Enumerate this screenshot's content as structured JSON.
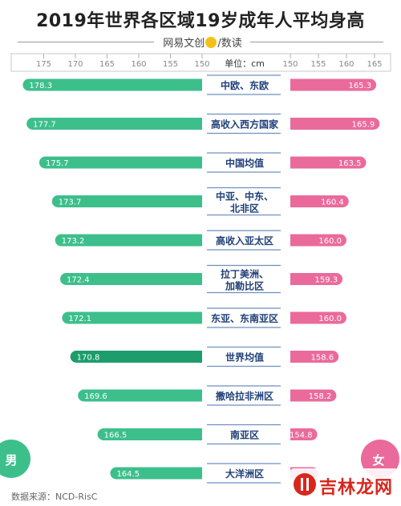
{
  "title": "2019年世界各区域19岁成年人平均身高",
  "source_credit": {
    "before": "网易文创",
    "after": "/数读"
  },
  "footer": "数据来源：NCD-RisC",
  "watermark": "吉林龙网",
  "colors": {
    "male": "#3dbf8c",
    "male_highlight": "#1c9d6b",
    "female": "#ea6a9b",
    "label_text": "#1f3f77",
    "label_line": "#6f8fbf"
  },
  "chart_data": {
    "type": "bar",
    "title": "2019年世界各区域19岁成年人平均身高",
    "unit_label": "单位：cm",
    "left_axis": {
      "ticks": [
        175,
        170,
        165,
        160,
        155,
        150
      ],
      "lim": [
        150,
        180
      ]
    },
    "right_axis": {
      "ticks": [
        150,
        155,
        160,
        165
      ],
      "lim": [
        150,
        168
      ]
    },
    "series_labels": {
      "male": "男",
      "female": "女"
    },
    "highlight_category": "世界均值",
    "categories": [
      "中欧、东欧",
      "高收入西方国家",
      "中国均值",
      "中亚、中东、北非区",
      "高收入亚太区",
      "拉丁美洲、加勒比区",
      "东亚、东南亚区",
      "世界均值",
      "撒哈拉非洲区",
      "南亚区",
      "大洋洲区"
    ],
    "category_lines": [
      [
        "中欧、东欧"
      ],
      [
        "高收入西方国家"
      ],
      [
        "中国均值"
      ],
      [
        "中亚、中东、",
        "北非区"
      ],
      [
        "高收入亚太区"
      ],
      [
        "拉丁美洲、",
        "加勒比区"
      ],
      [
        "东亚、东南亚区"
      ],
      [
        "世界均值"
      ],
      [
        "撒哈拉非洲区"
      ],
      [
        "南亚区"
      ],
      [
        "大洋洲区"
      ]
    ],
    "series": [
      {
        "name": "男",
        "values": [
          178.3,
          177.7,
          175.7,
          173.7,
          173.2,
          172.4,
          172.1,
          170.8,
          169.6,
          166.5,
          164.5
        ]
      },
      {
        "name": "女",
        "values": [
          165.3,
          165.9,
          163.5,
          160.4,
          160.0,
          159.3,
          160.0,
          158.6,
          158.2,
          154.8,
          155.0
        ]
      }
    ],
    "value_labels": {
      "male": [
        "178.3",
        "177.7",
        "175.7",
        "173.7",
        "173.2",
        "172.4",
        "172.1",
        "170.8",
        "169.6",
        "166.5",
        "164.5"
      ],
      "female": [
        "165.3",
        "165.9",
        "163.5",
        "160.4",
        "160.0",
        "159.3",
        "160.0",
        "158.6",
        "158.2",
        "154.8",
        ""
      ]
    }
  }
}
